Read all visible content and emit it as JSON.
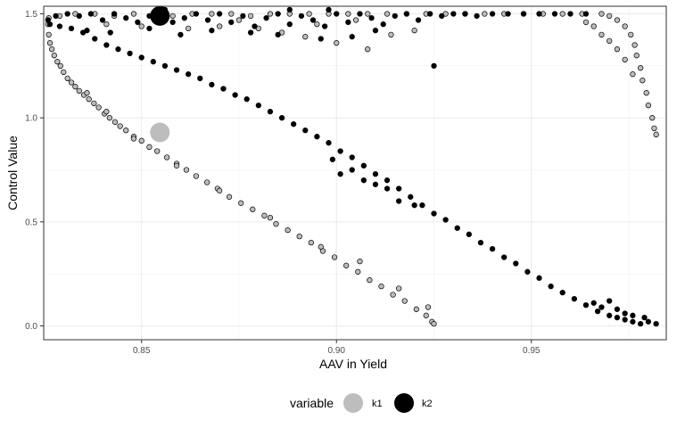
{
  "chart_data": {
    "type": "scatter",
    "title": "",
    "xlabel": "AAV in Yield",
    "ylabel": "Control Value",
    "xlim": [
      0.8249,
      0.9846
    ],
    "ylim": [
      -0.0665,
      1.5365
    ],
    "x_ticks": [
      {
        "value": 0.85,
        "label": "0.85"
      },
      {
        "value": 0.9,
        "label": "0.90"
      },
      {
        "value": 0.95,
        "label": "0.95"
      }
    ],
    "y_ticks": [
      {
        "value": 0.0,
        "label": "0.0"
      },
      {
        "value": 0.5,
        "label": "0.5"
      },
      {
        "value": 1.0,
        "label": "1.0"
      },
      {
        "value": 1.5,
        "label": "1.5"
      }
    ],
    "grid": true,
    "legend": {
      "title": "variable",
      "position": "bottom",
      "entries": [
        {
          "label": "k1",
          "color": "#bdbdbd"
        },
        {
          "label": "k2",
          "color": "#000000"
        }
      ]
    },
    "series": [
      {
        "name": "k1",
        "color": "#bdbdbd",
        "highlight": [
          0.8547,
          0.93
        ],
        "points": [
          [
            0.826,
            1.45
          ],
          [
            0.8262,
            1.4
          ],
          [
            0.8265,
            1.36
          ],
          [
            0.827,
            1.33
          ],
          [
            0.8276,
            1.3
          ],
          [
            0.8284,
            1.27
          ],
          [
            0.8292,
            1.25
          ],
          [
            0.83,
            1.22
          ],
          [
            0.831,
            1.19
          ],
          [
            0.832,
            1.17
          ],
          [
            0.833,
            1.15
          ],
          [
            0.834,
            1.13
          ],
          [
            0.8352,
            1.11
          ],
          [
            0.8365,
            1.09
          ],
          [
            0.8378,
            1.07
          ],
          [
            0.839,
            1.05
          ],
          [
            0.8405,
            1.02
          ],
          [
            0.8418,
            1.0
          ],
          [
            0.8432,
            0.98
          ],
          [
            0.8445,
            0.96
          ],
          [
            0.846,
            0.94
          ],
          [
            0.848,
            0.91
          ],
          [
            0.85,
            0.89
          ],
          [
            0.852,
            0.86
          ],
          [
            0.854,
            0.84
          ],
          [
            0.8565,
            0.81
          ],
          [
            0.859,
            0.78
          ],
          [
            0.8615,
            0.75
          ],
          [
            0.864,
            0.72
          ],
          [
            0.8668,
            0.69
          ],
          [
            0.8695,
            0.66
          ],
          [
            0.8725,
            0.62
          ],
          [
            0.8755,
            0.59
          ],
          [
            0.8785,
            0.56
          ],
          [
            0.8815,
            0.53
          ],
          [
            0.8845,
            0.49
          ],
          [
            0.8875,
            0.46
          ],
          [
            0.8905,
            0.43
          ],
          [
            0.8935,
            0.4
          ],
          [
            0.8965,
            0.36
          ],
          [
            0.8995,
            0.33
          ],
          [
            0.9025,
            0.29
          ],
          [
            0.9055,
            0.26
          ],
          [
            0.9085,
            0.22
          ],
          [
            0.9115,
            0.19
          ],
          [
            0.9145,
            0.15
          ],
          [
            0.9175,
            0.12
          ],
          [
            0.9205,
            0.08
          ],
          [
            0.923,
            0.05
          ],
          [
            0.9245,
            0.02
          ],
          [
            0.925,
            0.01
          ],
          [
            0.9235,
            0.09
          ],
          [
            0.916,
            0.18
          ],
          [
            0.906,
            0.31
          ],
          [
            0.896,
            0.38
          ],
          [
            0.883,
            0.52
          ],
          [
            0.87,
            0.65
          ],
          [
            0.859,
            0.77
          ],
          [
            0.848,
            0.9
          ],
          [
            0.841,
            1.03
          ],
          [
            0.836,
            1.12
          ],
          [
            0.8262,
            1.48
          ],
          [
            0.829,
            1.49
          ],
          [
            0.833,
            1.5
          ],
          [
            0.838,
            1.5
          ],
          [
            0.843,
            1.49
          ],
          [
            0.848,
            1.5
          ],
          [
            0.853,
            1.5
          ],
          [
            0.858,
            1.49
          ],
          [
            0.863,
            1.5
          ],
          [
            0.868,
            1.5
          ],
          [
            0.873,
            1.5
          ],
          [
            0.878,
            1.49
          ],
          [
            0.883,
            1.5
          ],
          [
            0.888,
            1.5
          ],
          [
            0.893,
            1.5
          ],
          [
            0.898,
            1.5
          ],
          [
            0.903,
            1.5
          ],
          [
            0.908,
            1.5
          ],
          [
            0.913,
            1.5
          ],
          [
            0.918,
            1.5
          ],
          [
            0.923,
            1.5
          ],
          [
            0.928,
            1.5
          ],
          [
            0.933,
            1.5
          ],
          [
            0.938,
            1.5
          ],
          [
            0.943,
            1.5
          ],
          [
            0.948,
            1.5
          ],
          [
            0.953,
            1.5
          ],
          [
            0.958,
            1.5
          ],
          [
            0.963,
            1.5
          ],
          [
            0.968,
            1.5
          ],
          [
            0.97,
            1.49
          ],
          [
            0.972,
            1.47
          ],
          [
            0.974,
            1.44
          ],
          [
            0.9755,
            1.4
          ],
          [
            0.9765,
            1.35
          ],
          [
            0.977,
            1.3
          ],
          [
            0.978,
            1.24
          ],
          [
            0.9785,
            1.18
          ],
          [
            0.9795,
            1.12
          ],
          [
            0.98,
            1.06
          ],
          [
            0.981,
            1.0
          ],
          [
            0.9815,
            0.95
          ],
          [
            0.982,
            0.92
          ],
          [
            0.976,
            1.21
          ],
          [
            0.974,
            1.28
          ],
          [
            0.972,
            1.33
          ],
          [
            0.97,
            1.37
          ],
          [
            0.968,
            1.4
          ],
          [
            0.966,
            1.44
          ],
          [
            0.964,
            1.46
          ],
          [
            0.841,
            1.45
          ],
          [
            0.85,
            1.44
          ],
          [
            0.862,
            1.43
          ],
          [
            0.87,
            1.44
          ],
          [
            0.88,
            1.43
          ],
          [
            0.886,
            1.41
          ],
          [
            0.892,
            1.39
          ],
          [
            0.9,
            1.36
          ],
          [
            0.908,
            1.33
          ],
          [
            0.914,
            1.4
          ],
          [
            0.92,
            1.42
          ],
          [
            0.875,
            1.47
          ],
          [
            0.895,
            1.45
          ],
          [
            0.905,
            1.47
          ]
        ]
      },
      {
        "name": "k2",
        "color": "#000000",
        "highlight": [
          0.8547,
          1.49
        ],
        "points": [
          [
            0.8265,
            1.45
          ],
          [
            0.829,
            1.44
          ],
          [
            0.832,
            1.43
          ],
          [
            0.835,
            1.41
          ],
          [
            0.838,
            1.38
          ],
          [
            0.841,
            1.35
          ],
          [
            0.844,
            1.33
          ],
          [
            0.847,
            1.31
          ],
          [
            0.85,
            1.29
          ],
          [
            0.853,
            1.27
          ],
          [
            0.856,
            1.25
          ],
          [
            0.859,
            1.23
          ],
          [
            0.862,
            1.21
          ],
          [
            0.865,
            1.19
          ],
          [
            0.868,
            1.16
          ],
          [
            0.871,
            1.14
          ],
          [
            0.874,
            1.11
          ],
          [
            0.877,
            1.09
          ],
          [
            0.88,
            1.06
          ],
          [
            0.883,
            1.03
          ],
          [
            0.886,
            1.0
          ],
          [
            0.889,
            0.97
          ],
          [
            0.892,
            0.94
          ],
          [
            0.895,
            0.91
          ],
          [
            0.898,
            0.88
          ],
          [
            0.901,
            0.84
          ],
          [
            0.904,
            0.81
          ],
          [
            0.907,
            0.77
          ],
          [
            0.91,
            0.73
          ],
          [
            0.913,
            0.7
          ],
          [
            0.916,
            0.66
          ],
          [
            0.919,
            0.62
          ],
          [
            0.922,
            0.58
          ],
          [
            0.925,
            0.54
          ],
          [
            0.928,
            0.51
          ],
          [
            0.931,
            0.47
          ],
          [
            0.934,
            0.44
          ],
          [
            0.937,
            0.4
          ],
          [
            0.94,
            0.37
          ],
          [
            0.943,
            0.33
          ],
          [
            0.946,
            0.3
          ],
          [
            0.949,
            0.26
          ],
          [
            0.952,
            0.23
          ],
          [
            0.955,
            0.19
          ],
          [
            0.958,
            0.16
          ],
          [
            0.961,
            0.13
          ],
          [
            0.964,
            0.1
          ],
          [
            0.967,
            0.07
          ],
          [
            0.97,
            0.05
          ],
          [
            0.972,
            0.04
          ],
          [
            0.974,
            0.03
          ],
          [
            0.976,
            0.02
          ],
          [
            0.978,
            0.01
          ],
          [
            0.98,
            0.02
          ],
          [
            0.982,
            0.01
          ],
          [
            0.97,
            0.12
          ],
          [
            0.972,
            0.08
          ],
          [
            0.974,
            0.06
          ],
          [
            0.968,
            0.09
          ],
          [
            0.966,
            0.11
          ],
          [
            0.976,
            0.05
          ],
          [
            0.979,
            0.04
          ],
          [
            0.901,
            0.73
          ],
          [
            0.904,
            0.75
          ],
          [
            0.907,
            0.7
          ],
          [
            0.91,
            0.68
          ],
          [
            0.913,
            0.66
          ],
          [
            0.899,
            0.8
          ],
          [
            0.916,
            0.6
          ],
          [
            0.92,
            0.58
          ],
          [
            0.826,
            1.47
          ],
          [
            0.828,
            1.49
          ],
          [
            0.831,
            1.5
          ],
          [
            0.834,
            1.49
          ],
          [
            0.837,
            1.5
          ],
          [
            0.84,
            1.47
          ],
          [
            0.843,
            1.5
          ],
          [
            0.846,
            1.48
          ],
          [
            0.849,
            1.46
          ],
          [
            0.852,
            1.49
          ],
          [
            0.855,
            1.5
          ],
          [
            0.858,
            1.46
          ],
          [
            0.861,
            1.48
          ],
          [
            0.864,
            1.5
          ],
          [
            0.867,
            1.47
          ],
          [
            0.87,
            1.5
          ],
          [
            0.873,
            1.46
          ],
          [
            0.876,
            1.49
          ],
          [
            0.879,
            1.44
          ],
          [
            0.882,
            1.48
          ],
          [
            0.885,
            1.5
          ],
          [
            0.888,
            1.45
          ],
          [
            0.891,
            1.49
          ],
          [
            0.894,
            1.47
          ],
          [
            0.897,
            1.44
          ],
          [
            0.9,
            1.5
          ],
          [
            0.903,
            1.46
          ],
          [
            0.906,
            1.5
          ],
          [
            0.909,
            1.48
          ],
          [
            0.912,
            1.45
          ],
          [
            0.915,
            1.49
          ],
          [
            0.918,
            1.5
          ],
          [
            0.921,
            1.47
          ],
          [
            0.924,
            1.5
          ],
          [
            0.927,
            1.49
          ],
          [
            0.93,
            1.5
          ],
          [
            0.933,
            1.5
          ],
          [
            0.936,
            1.49
          ],
          [
            0.94,
            1.5
          ],
          [
            0.944,
            1.5
          ],
          [
            0.948,
            1.5
          ],
          [
            0.952,
            1.5
          ],
          [
            0.956,
            1.5
          ],
          [
            0.96,
            1.5
          ],
          [
            0.964,
            1.5
          ],
          [
            0.836,
            1.42
          ],
          [
            0.842,
            1.41
          ],
          [
            0.852,
            1.43
          ],
          [
            0.86,
            1.4
          ],
          [
            0.868,
            1.42
          ],
          [
            0.878,
            1.41
          ],
          [
            0.885,
            1.4
          ],
          [
            0.896,
            1.38
          ],
          [
            0.904,
            1.39
          ],
          [
            0.91,
            1.42
          ],
          [
            0.925,
            1.25
          ],
          [
            0.888,
            1.52
          ],
          [
            0.898,
            1.52
          ],
          [
            0.856,
            1.52
          ]
        ]
      }
    ]
  }
}
